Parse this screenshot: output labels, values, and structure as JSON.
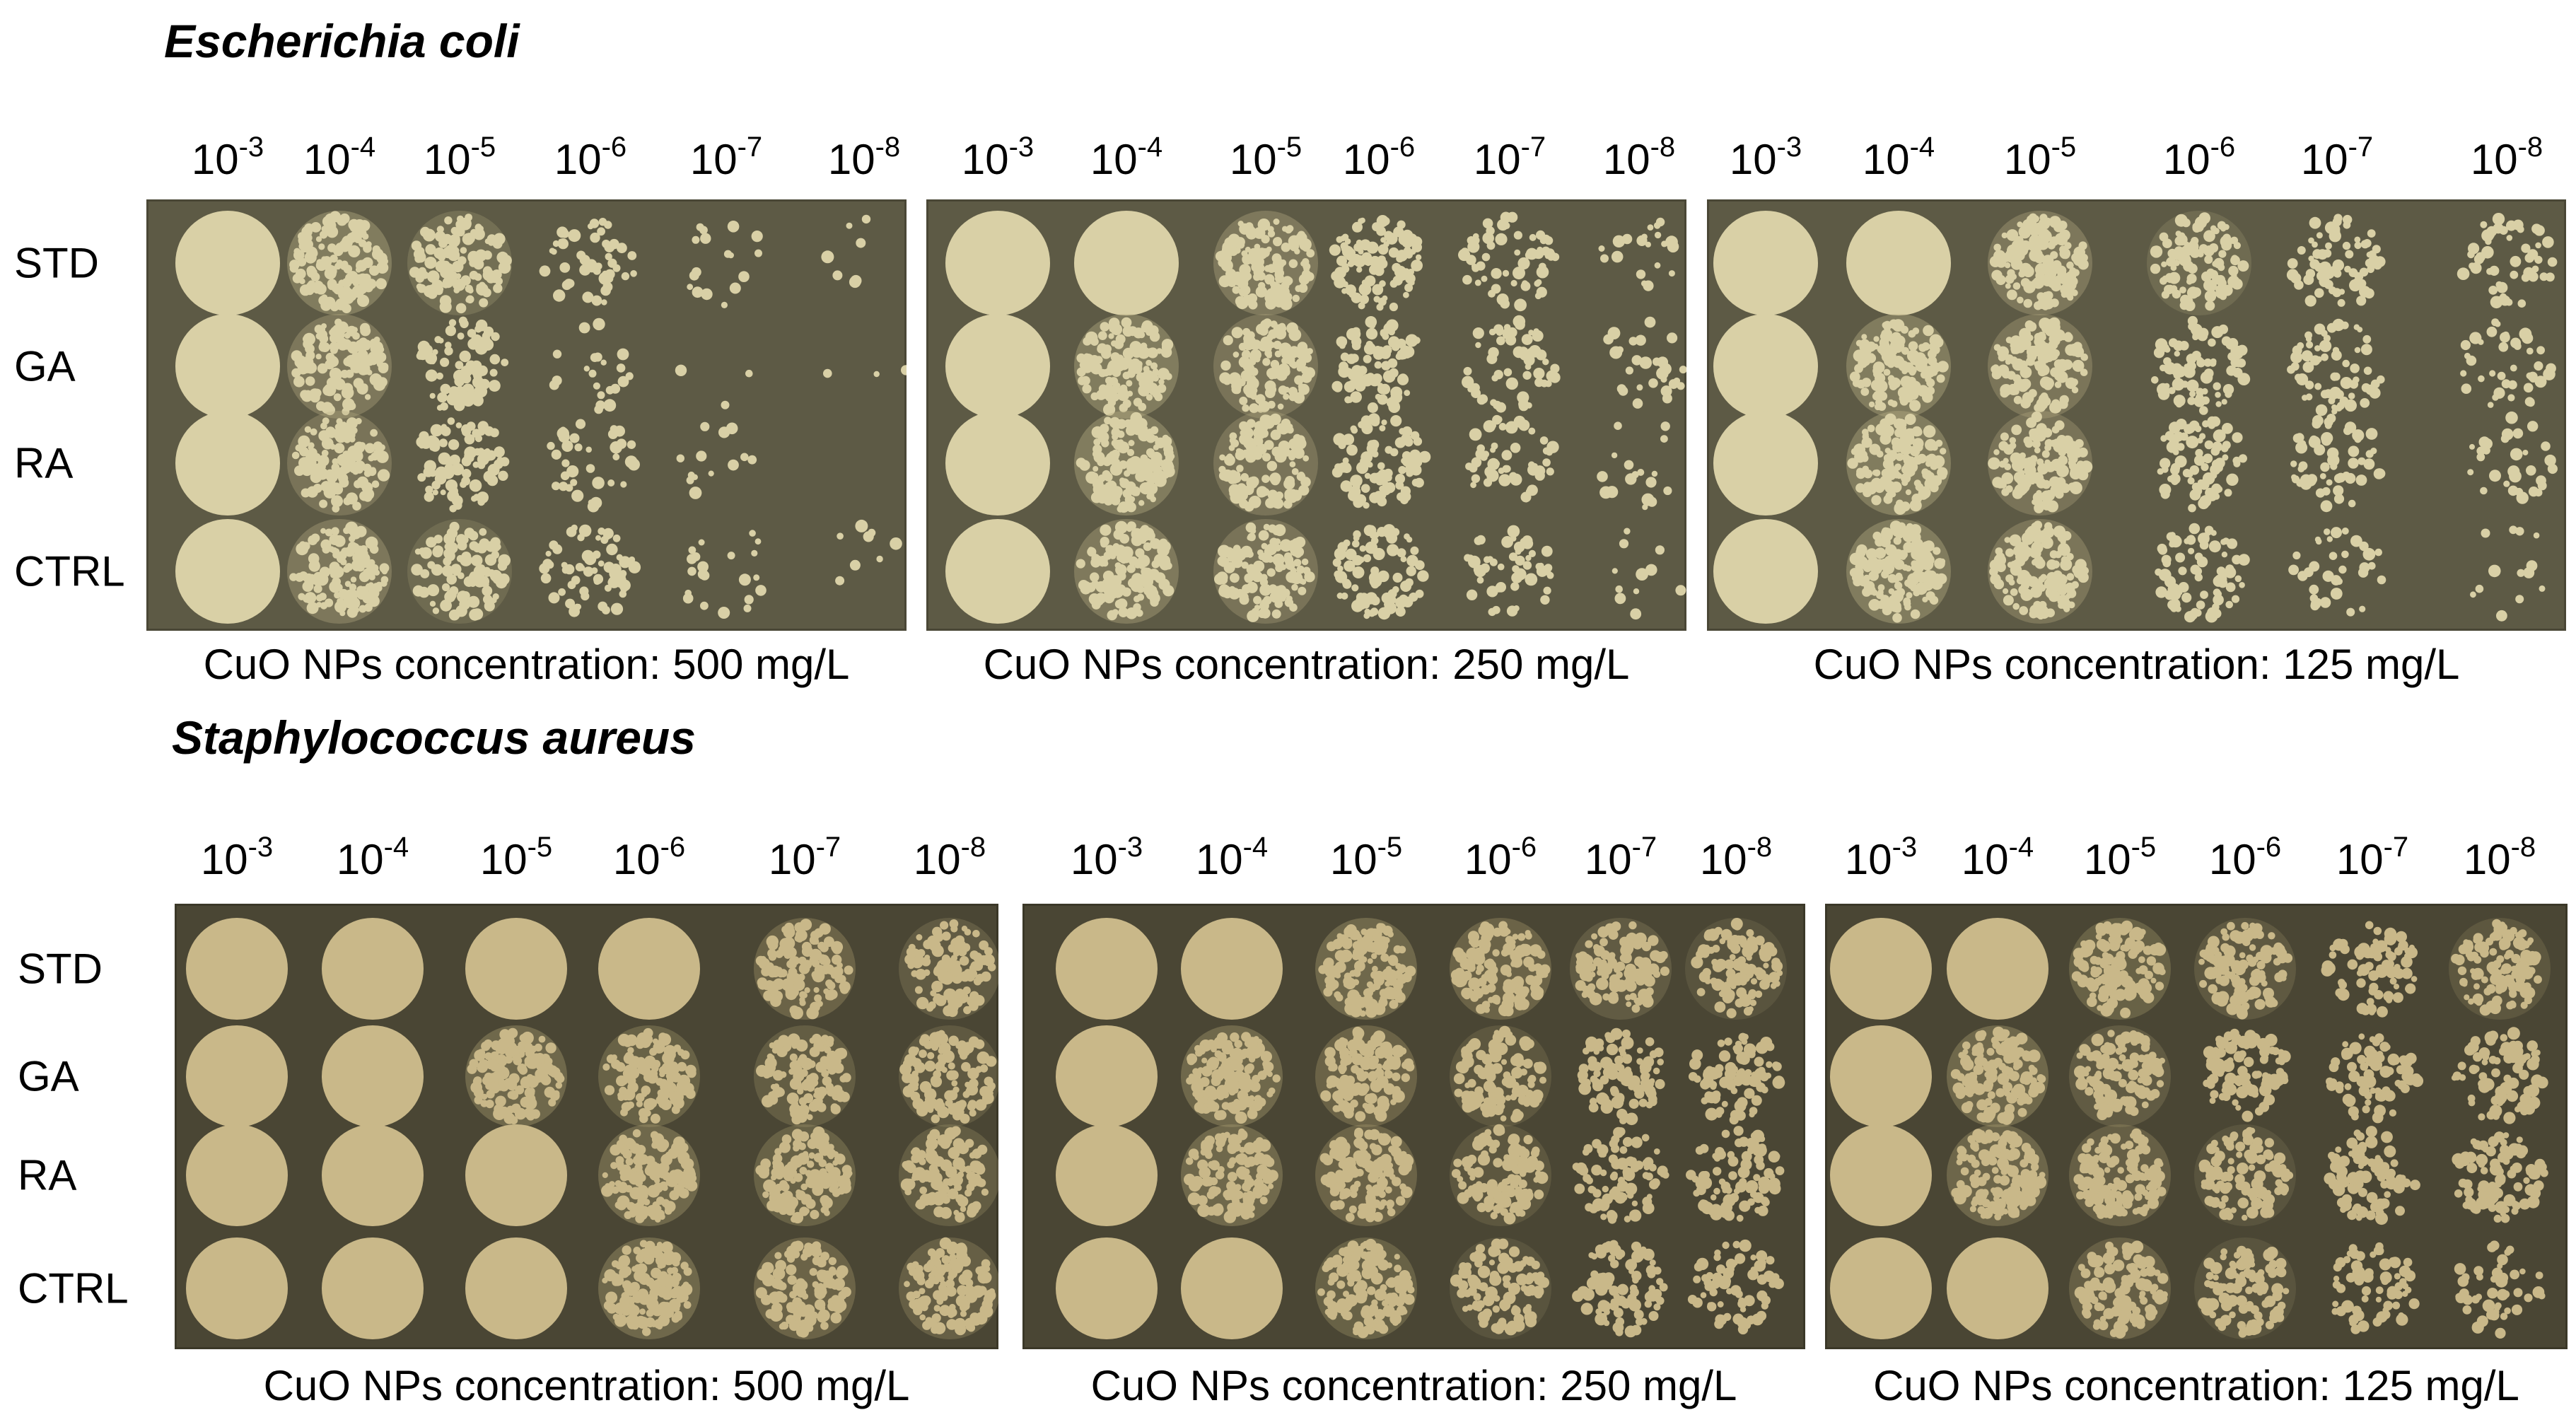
{
  "panels": [
    {
      "organism": "Escherichia coli",
      "colors": {
        "agar": "#5d5a45",
        "agar_edge": "#4a4736",
        "colony": "#d9d0a6",
        "colony_dark": "#b9ae84"
      },
      "plates": [
        {
          "caption": "CuO NPs concentration: 500 mg/L",
          "density": [
            [
              1,
              0.95,
              0.8,
              0.35,
              0.12,
              0.05
            ],
            [
              1,
              0.9,
              0.55,
              0.15,
              0.02,
              0.02
            ],
            [
              1,
              0.85,
              0.6,
              0.25,
              0.1,
              0.0
            ],
            [
              1,
              0.9,
              0.75,
              0.45,
              0.15,
              0.06
            ]
          ]
        },
        {
          "caption": "CuO NPs concentration: 250 mg/L",
          "density": [
            [
              1,
              0.97,
              0.92,
              0.65,
              0.45,
              0.15
            ],
            [
              1,
              0.95,
              0.85,
              0.6,
              0.4,
              0.2
            ],
            [
              1,
              0.95,
              0.85,
              0.65,
              0.35,
              0.12
            ],
            [
              1,
              0.93,
              0.85,
              0.6,
              0.35,
              0.08
            ]
          ]
        },
        {
          "caption": "CuO NPs concentration: 125 mg/L",
          "density": [
            [
              1,
              0.97,
              0.9,
              0.75,
              0.5,
              0.35
            ],
            [
              1,
              0.95,
              0.88,
              0.6,
              0.45,
              0.3
            ],
            [
              1,
              0.95,
              0.85,
              0.55,
              0.4,
              0.22
            ],
            [
              1,
              0.95,
              0.88,
              0.55,
              0.25,
              0.1
            ]
          ]
        }
      ]
    },
    {
      "organism": "Staphylococcus aureus",
      "colors": {
        "agar": "#4a4634",
        "agar_edge": "#3b3828",
        "colony": "#c9b889",
        "colony_dark": "#a89a6e"
      },
      "plates": [
        {
          "caption": "CuO NPs concentration: 500 mg/L",
          "density": [
            [
              1,
              1,
              1,
              0.97,
              0.9,
              0.8
            ],
            [
              1,
              0.98,
              0.95,
              0.88,
              0.82,
              0.78
            ],
            [
              1,
              1,
              0.98,
              0.95,
              0.88,
              0.82
            ],
            [
              1,
              1,
              0.98,
              0.95,
              0.9,
              0.85
            ]
          ]
        },
        {
          "caption": "CuO NPs concentration: 250 mg/L",
          "density": [
            [
              1,
              0.98,
              0.95,
              0.9,
              0.8,
              0.72
            ],
            [
              1,
              0.95,
              0.9,
              0.75,
              0.65,
              0.6
            ],
            [
              1,
              0.95,
              0.9,
              0.75,
              0.6,
              0.62
            ],
            [
              1,
              0.97,
              0.88,
              0.72,
              0.58,
              0.45
            ]
          ]
        },
        {
          "caption": "CuO NPs concentration: 125 mg/L",
          "density": [
            [
              1,
              0.98,
              0.88,
              0.78,
              0.55,
              0.75
            ],
            [
              1,
              0.95,
              0.8,
              0.7,
              0.5,
              0.55
            ],
            [
              1,
              0.93,
              0.85,
              0.72,
              0.6,
              0.65
            ],
            [
              1,
              0.97,
              0.85,
              0.72,
              0.45,
              0.35
            ]
          ]
        }
      ]
    }
  ],
  "dilutions": [
    {
      "base": "10",
      "exp": "-3"
    },
    {
      "base": "10",
      "exp": "-4"
    },
    {
      "base": "10",
      "exp": "-5"
    },
    {
      "base": "10",
      "exp": "-6"
    },
    {
      "base": "10",
      "exp": "-7"
    },
    {
      "base": "10",
      "exp": "-8"
    }
  ],
  "row_labels": [
    "STD",
    "GA",
    "RA",
    "CTRL"
  ]
}
